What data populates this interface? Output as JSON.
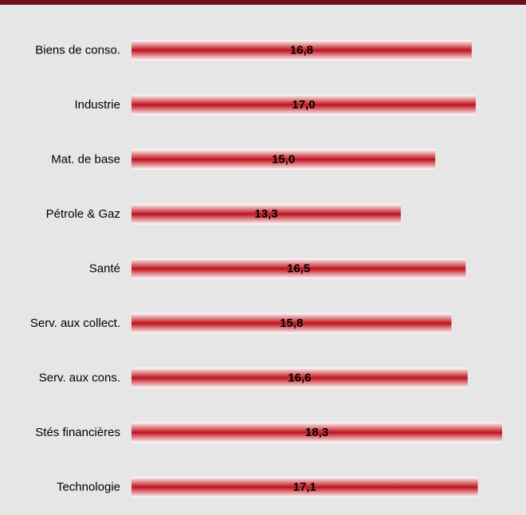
{
  "chart_data": {
    "type": "bar",
    "orientation": "horizontal",
    "categories": [
      "Biens de conso.",
      "Industrie",
      "Mat. de base",
      "Pétrole & Gaz",
      "Santé",
      "Serv. aux collect.",
      "Serv. aux cons.",
      "Stés financières",
      "Technologie"
    ],
    "values": [
      16.8,
      17.0,
      15.0,
      13.3,
      16.5,
      15.8,
      16.6,
      18.3,
      17.1
    ],
    "value_labels": [
      "16,8",
      "17,0",
      "15,0",
      "13,3",
      "16,5",
      "15,8",
      "16,6",
      "18,3",
      "17,1"
    ],
    "title": "",
    "xlabel": "",
    "ylabel": "",
    "xlim": [
      0,
      18.3
    ],
    "grid": false,
    "legend": "none"
  },
  "colors": {
    "background": "#e6e6e6",
    "top_bar": "#6e1018",
    "bar_core": "#c0121c",
    "bar_edge": "#ffffff",
    "text": "#000000"
  }
}
